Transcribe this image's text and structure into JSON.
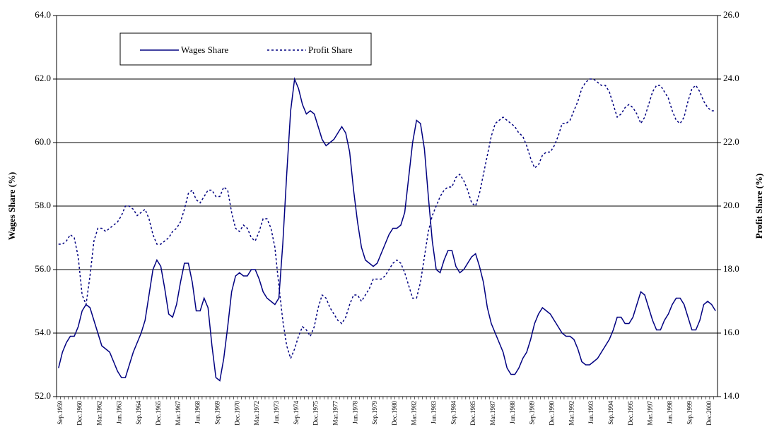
{
  "chart_data": {
    "type": "line",
    "ylabel": "Wages Share (%)",
    "y2label": "Profit Share (%)",
    "categories": [
      "Sep.1959",
      null,
      null,
      null,
      null,
      "Dec.1960",
      null,
      null,
      null,
      null,
      "Mar.1962",
      null,
      null,
      null,
      null,
      "Jun.1963",
      null,
      null,
      null,
      null,
      "Sep.1964",
      null,
      null,
      null,
      null,
      "Dec.1965",
      null,
      null,
      null,
      null,
      "Mar.1967",
      null,
      null,
      null,
      null,
      "Jun.1968",
      null,
      null,
      null,
      null,
      "Sep.1969",
      null,
      null,
      null,
      null,
      "Dec.1970",
      null,
      null,
      null,
      null,
      "Mar.1972",
      null,
      null,
      null,
      null,
      "Jun.1973",
      null,
      null,
      null,
      null,
      "Sep.1974",
      null,
      null,
      null,
      null,
      "Dec.1975",
      null,
      null,
      null,
      null,
      "Mar.1977",
      null,
      null,
      null,
      null,
      "Jun.1978",
      null,
      null,
      null,
      null,
      "Sep.1979",
      null,
      null,
      null,
      null,
      "Dec.1980",
      null,
      null,
      null,
      null,
      "Mar.1982",
      null,
      null,
      null,
      null,
      "Jun.1983",
      null,
      null,
      null,
      null,
      "Sep.1984",
      null,
      null,
      null,
      null,
      "Dec.1985",
      null,
      null,
      null,
      null,
      "Mar.1987",
      null,
      null,
      null,
      null,
      "Jun.1988",
      null,
      null,
      null,
      null,
      "Sep.1989",
      null,
      null,
      null,
      null,
      "Dec.1990",
      null,
      null,
      null,
      null,
      "Mar.1992",
      null,
      null,
      null,
      null,
      "Jun.1993",
      null,
      null,
      null,
      null,
      "Sep.1994",
      null,
      null,
      null,
      null,
      "Dec.1995",
      null,
      null,
      null,
      null,
      "Mar.1997",
      null,
      null,
      null,
      null,
      "Jun.1998",
      null,
      null,
      null,
      null,
      "Sep.1999",
      null,
      null,
      null,
      null,
      "Dec.2000",
      null,
      null
    ],
    "series": [
      {
        "name": "Wages Share",
        "color": "#000080",
        "style": "solid",
        "axis": "y",
        "values": [
          52.9,
          53.4,
          53.7,
          53.9,
          53.9,
          54.2,
          54.7,
          54.9,
          54.8,
          54.4,
          54.0,
          53.6,
          53.5,
          53.4,
          53.1,
          52.8,
          52.6,
          52.6,
          53.0,
          53.4,
          53.7,
          54.0,
          54.4,
          55.2,
          56.0,
          56.3,
          56.1,
          55.4,
          54.6,
          54.5,
          54.9,
          55.6,
          56.2,
          56.2,
          55.6,
          54.7,
          54.7,
          55.1,
          54.8,
          53.6,
          52.6,
          52.5,
          53.2,
          54.2,
          55.3,
          55.8,
          55.9,
          55.8,
          55.8,
          56.0,
          56.0,
          55.7,
          55.3,
          55.1,
          55.0,
          54.9,
          55.1,
          56.8,
          59.0,
          61.0,
          62.0,
          61.7,
          61.2,
          60.9,
          61.0,
          60.9,
          60.5,
          60.1,
          59.9,
          60.0,
          60.1,
          60.3,
          60.5,
          60.3,
          59.7,
          58.5,
          57.5,
          56.7,
          56.3,
          56.2,
          56.1,
          56.2,
          56.5,
          56.8,
          57.1,
          57.3,
          57.3,
          57.4,
          57.8,
          58.9,
          60.0,
          60.7,
          60.6,
          59.8,
          58.3,
          56.9,
          56.0,
          55.9,
          56.3,
          56.6,
          56.6,
          56.1,
          55.9,
          56.0,
          56.2,
          56.4,
          56.5,
          56.1,
          55.6,
          54.8,
          54.3,
          54.0,
          53.7,
          53.4,
          52.9,
          52.7,
          52.7,
          52.9,
          53.2,
          53.4,
          53.8,
          54.3,
          54.6,
          54.8,
          54.7,
          54.6,
          54.4,
          54.2,
          54.0,
          53.9,
          53.9,
          53.8,
          53.5,
          53.1,
          53.0,
          53.0,
          53.1,
          53.2,
          53.4,
          53.6,
          53.8,
          54.1,
          54.5,
          54.5,
          54.3,
          54.3,
          54.5,
          54.9,
          55.3,
          55.2,
          54.8,
          54.4,
          54.1,
          54.1,
          54.4,
          54.6,
          54.9,
          55.1,
          55.1,
          54.9,
          54.5,
          54.1,
          54.1,
          54.4,
          54.9,
          55.0,
          54.9,
          54.7
        ]
      },
      {
        "name": "Profit Share",
        "color": "#000080",
        "style": "dotted",
        "axis": "y2",
        "values": [
          18.8,
          18.8,
          18.9,
          19.1,
          19.0,
          18.4,
          17.2,
          16.9,
          17.8,
          18.9,
          19.3,
          19.3,
          19.2,
          19.3,
          19.4,
          19.5,
          19.7,
          20.0,
          20.0,
          19.9,
          19.7,
          19.8,
          19.9,
          19.6,
          19.1,
          18.8,
          18.8,
          18.9,
          19.0,
          19.2,
          19.3,
          19.5,
          19.9,
          20.4,
          20.5,
          20.2,
          20.1,
          20.3,
          20.5,
          20.5,
          20.3,
          20.3,
          20.6,
          20.5,
          19.8,
          19.3,
          19.2,
          19.4,
          19.3,
          19.0,
          18.9,
          19.2,
          19.6,
          19.6,
          19.3,
          18.7,
          17.5,
          16.4,
          15.6,
          15.2,
          15.5,
          15.9,
          16.2,
          16.1,
          15.9,
          16.2,
          16.8,
          17.2,
          17.1,
          16.8,
          16.6,
          16.4,
          16.3,
          16.5,
          16.9,
          17.2,
          17.2,
          17.0,
          17.2,
          17.4,
          17.7,
          17.7,
          17.7,
          17.8,
          18.0,
          18.2,
          18.3,
          18.2,
          17.9,
          17.5,
          17.1,
          17.1,
          17.6,
          18.4,
          19.2,
          19.7,
          20.0,
          20.3,
          20.5,
          20.6,
          20.6,
          20.9,
          21.0,
          20.8,
          20.5,
          20.1,
          20.0,
          20.4,
          21.0,
          21.6,
          22.2,
          22.6,
          22.7,
          22.8,
          22.7,
          22.6,
          22.5,
          22.3,
          22.2,
          21.9,
          21.5,
          21.2,
          21.3,
          21.6,
          21.7,
          21.7,
          21.9,
          22.2,
          22.6,
          22.6,
          22.7,
          23.0,
          23.3,
          23.7,
          23.9,
          24.0,
          24.0,
          23.9,
          23.8,
          23.8,
          23.6,
          23.2,
          22.8,
          22.9,
          23.1,
          23.2,
          23.1,
          22.9,
          22.6,
          22.8,
          23.2,
          23.6,
          23.8,
          23.8,
          23.6,
          23.4,
          23.0,
          22.7,
          22.6,
          22.8,
          23.3,
          23.7,
          23.8,
          23.6,
          23.3,
          23.1,
          23.0,
          23.0
        ]
      }
    ],
    "ylim": [
      52,
      64
    ],
    "yticks": [
      {
        "value": 52,
        "label": "52.0"
      },
      {
        "value": 54,
        "label": "54.0"
      },
      {
        "value": 56,
        "label": "56.0"
      },
      {
        "value": 58,
        "label": "58.0"
      },
      {
        "value": 60,
        "label": "60.0"
      },
      {
        "value": 62,
        "label": "62.0"
      },
      {
        "value": 64,
        "label": "64.0"
      }
    ],
    "y2lim": [
      14,
      26
    ],
    "y2ticks": [
      {
        "value": 14,
        "label": "14.0"
      },
      {
        "value": 16,
        "label": "16.0"
      },
      {
        "value": 18,
        "label": "18.0"
      },
      {
        "value": 20,
        "label": "20.0"
      },
      {
        "value": 22,
        "label": "22.0"
      },
      {
        "value": 24,
        "label": "24.0"
      },
      {
        "value": 26,
        "label": "26.0"
      }
    ],
    "grid": true,
    "legend": "top-left"
  }
}
